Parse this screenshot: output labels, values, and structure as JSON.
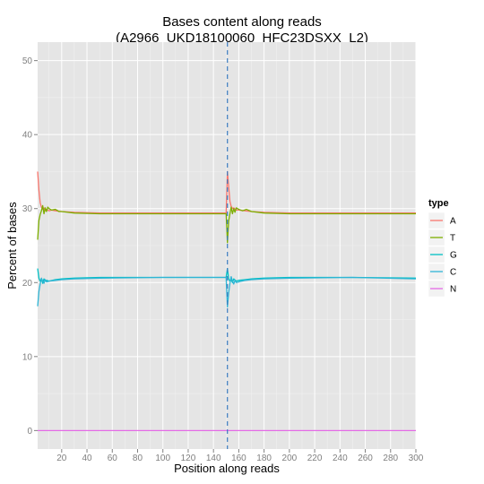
{
  "chart_data": {
    "type": "line",
    "title_line1": "Bases content along reads",
    "title_line2": "(A2966_UKD18100060_HFC23DSXX_L2)",
    "xlabel": "Position along reads",
    "ylabel": "Percent of bases",
    "xlim": [
      1,
      300
    ],
    "ylim": [
      -2.5,
      52.5
    ],
    "x_ticks": [
      20,
      40,
      60,
      80,
      100,
      120,
      140,
      160,
      180,
      200,
      220,
      240,
      260,
      280,
      300
    ],
    "y_ticks": [
      0,
      10,
      20,
      30,
      40,
      50
    ],
    "grid": true,
    "vline": {
      "x": 151,
      "style": "dashed",
      "color": "#3a7bbf"
    },
    "legend": {
      "title": "type",
      "position": "right"
    },
    "series": [
      {
        "name": "A",
        "color": "#F8766D",
        "points": [
          [
            1,
            35
          ],
          [
            2,
            32.5
          ],
          [
            3,
            30.8
          ],
          [
            4,
            30.2
          ],
          [
            5,
            29.9
          ],
          [
            6,
            30.1
          ],
          [
            7,
            29.7
          ],
          [
            8,
            29.9
          ],
          [
            10,
            29.7
          ],
          [
            12,
            29.8
          ],
          [
            15,
            29.7
          ],
          [
            20,
            29.6
          ],
          [
            30,
            29.5
          ],
          [
            50,
            29.4
          ],
          [
            100,
            29.4
          ],
          [
            145,
            29.4
          ],
          [
            150,
            29.4
          ],
          [
            151,
            35
          ],
          [
            152,
            33
          ],
          [
            153,
            31
          ],
          [
            154,
            30.3
          ],
          [
            155,
            30
          ],
          [
            156,
            30.1
          ],
          [
            158,
            29.8
          ],
          [
            160,
            29.8
          ],
          [
            165,
            29.7
          ],
          [
            170,
            29.6
          ],
          [
            180,
            29.5
          ],
          [
            200,
            29.4
          ],
          [
            250,
            29.4
          ],
          [
            300,
            29.4
          ]
        ]
      },
      {
        "name": "T",
        "color": "#7CAE00",
        "points": [
          [
            1,
            25.8
          ],
          [
            2,
            28.4
          ],
          [
            3,
            29.2
          ],
          [
            4,
            29.7
          ],
          [
            5,
            30.4
          ],
          [
            6,
            29.3
          ],
          [
            7,
            30.1
          ],
          [
            8,
            29.6
          ],
          [
            9,
            30.2
          ],
          [
            10,
            30
          ],
          [
            12,
            29.8
          ],
          [
            15,
            29.9
          ],
          [
            18,
            29.6
          ],
          [
            20,
            29.6
          ],
          [
            25,
            29.5
          ],
          [
            30,
            29.4
          ],
          [
            50,
            29.3
          ],
          [
            100,
            29.3
          ],
          [
            145,
            29.3
          ],
          [
            150,
            29.3
          ],
          [
            151,
            25.4
          ],
          [
            152,
            28.3
          ],
          [
            153,
            29.3
          ],
          [
            154,
            30.2
          ],
          [
            155,
            29.3
          ],
          [
            156,
            30
          ],
          [
            157,
            29.5
          ],
          [
            158,
            30.1
          ],
          [
            160,
            29.9
          ],
          [
            163,
            29.7
          ],
          [
            166,
            29.9
          ],
          [
            170,
            29.6
          ],
          [
            180,
            29.4
          ],
          [
            200,
            29.3
          ],
          [
            250,
            29.3
          ],
          [
            300,
            29.3
          ]
        ]
      },
      {
        "name": "G",
        "color": "#00BFC4",
        "points": [
          [
            1,
            21.9
          ],
          [
            2,
            20.6
          ],
          [
            3,
            20.2
          ],
          [
            4,
            20.5
          ],
          [
            5,
            19.9
          ],
          [
            6,
            20.5
          ],
          [
            7,
            20.2
          ],
          [
            8,
            20.3
          ],
          [
            10,
            20.2
          ],
          [
            15,
            20.4
          ],
          [
            20,
            20.5
          ],
          [
            30,
            20.6
          ],
          [
            50,
            20.7
          ],
          [
            100,
            20.7
          ],
          [
            150,
            20.7
          ],
          [
            151,
            21.9
          ],
          [
            152,
            20.5
          ],
          [
            153,
            20.2
          ],
          [
            154,
            20.4
          ],
          [
            155,
            20
          ],
          [
            156,
            20.5
          ],
          [
            158,
            20.2
          ],
          [
            160,
            20.3
          ],
          [
            165,
            20.4
          ],
          [
            170,
            20.5
          ],
          [
            180,
            20.6
          ],
          [
            200,
            20.7
          ],
          [
            250,
            20.7
          ],
          [
            300,
            20.6
          ]
        ]
      },
      {
        "name": "C",
        "color": "#2FB5D5",
        "points": [
          [
            1,
            16.8
          ],
          [
            2,
            18.8
          ],
          [
            3,
            19.8
          ],
          [
            4,
            20.6
          ],
          [
            5,
            20.2
          ],
          [
            6,
            19.9
          ],
          [
            7,
            20.4
          ],
          [
            8,
            20.1
          ],
          [
            10,
            20.2
          ],
          [
            15,
            20.3
          ],
          [
            20,
            20.4
          ],
          [
            30,
            20.5
          ],
          [
            50,
            20.6
          ],
          [
            100,
            20.7
          ],
          [
            150,
            20.7
          ],
          [
            151,
            16.7
          ],
          [
            152,
            18.6
          ],
          [
            153,
            19.9
          ],
          [
            154,
            20.8
          ],
          [
            155,
            20.2
          ],
          [
            156,
            19.8
          ],
          [
            157,
            20.3
          ],
          [
            158,
            20
          ],
          [
            160,
            20.1
          ],
          [
            165,
            20.3
          ],
          [
            170,
            20.4
          ],
          [
            180,
            20.5
          ],
          [
            200,
            20.6
          ],
          [
            250,
            20.7
          ],
          [
            300,
            20.5
          ]
        ]
      },
      {
        "name": "N",
        "color": "#E46AE6",
        "points": [
          [
            1,
            0
          ],
          [
            300,
            0
          ]
        ]
      }
    ]
  }
}
